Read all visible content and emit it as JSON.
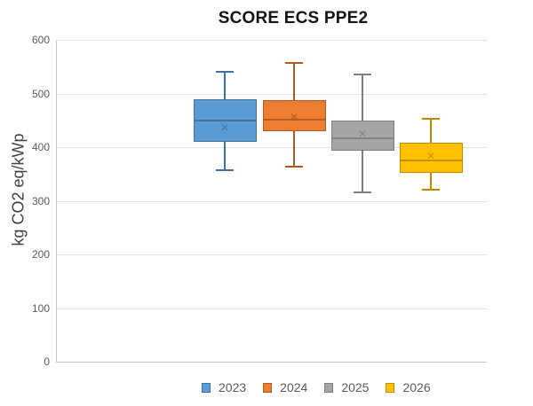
{
  "title": "SCORE ECS PPE2",
  "icons": {
    "mean_marker": "✕"
  },
  "chart_data": {
    "type": "boxplot",
    "title": "SCORE ECS PPE2",
    "xlabel": "",
    "ylabel": "kg CO2 eq/kWp",
    "ylim": [
      0,
      600
    ],
    "yticks": [
      0,
      100,
      200,
      300,
      400,
      500,
      600
    ],
    "grid": true,
    "legend_position": "bottom",
    "series": [
      {
        "name": "2023",
        "color": "#5B9BD5",
        "stroke": "#41719C",
        "min": 357,
        "q1": 410,
        "median": 450,
        "mean": 436,
        "q3": 490,
        "max": 540
      },
      {
        "name": "2024",
        "color": "#ED7D31",
        "stroke": "#AE5A21",
        "min": 364,
        "q1": 430,
        "median": 452,
        "mean": 456,
        "q3": 487,
        "max": 557
      },
      {
        "name": "2025",
        "color": "#A5A5A5",
        "stroke": "#7F7F7F",
        "min": 315,
        "q1": 393,
        "median": 417,
        "mean": 425,
        "q3": 450,
        "max": 535
      },
      {
        "name": "2026",
        "color": "#FFC000",
        "stroke": "#BC8C00",
        "min": 320,
        "q1": 352,
        "median": 375,
        "mean": 383,
        "q3": 408,
        "max": 453
      }
    ]
  }
}
